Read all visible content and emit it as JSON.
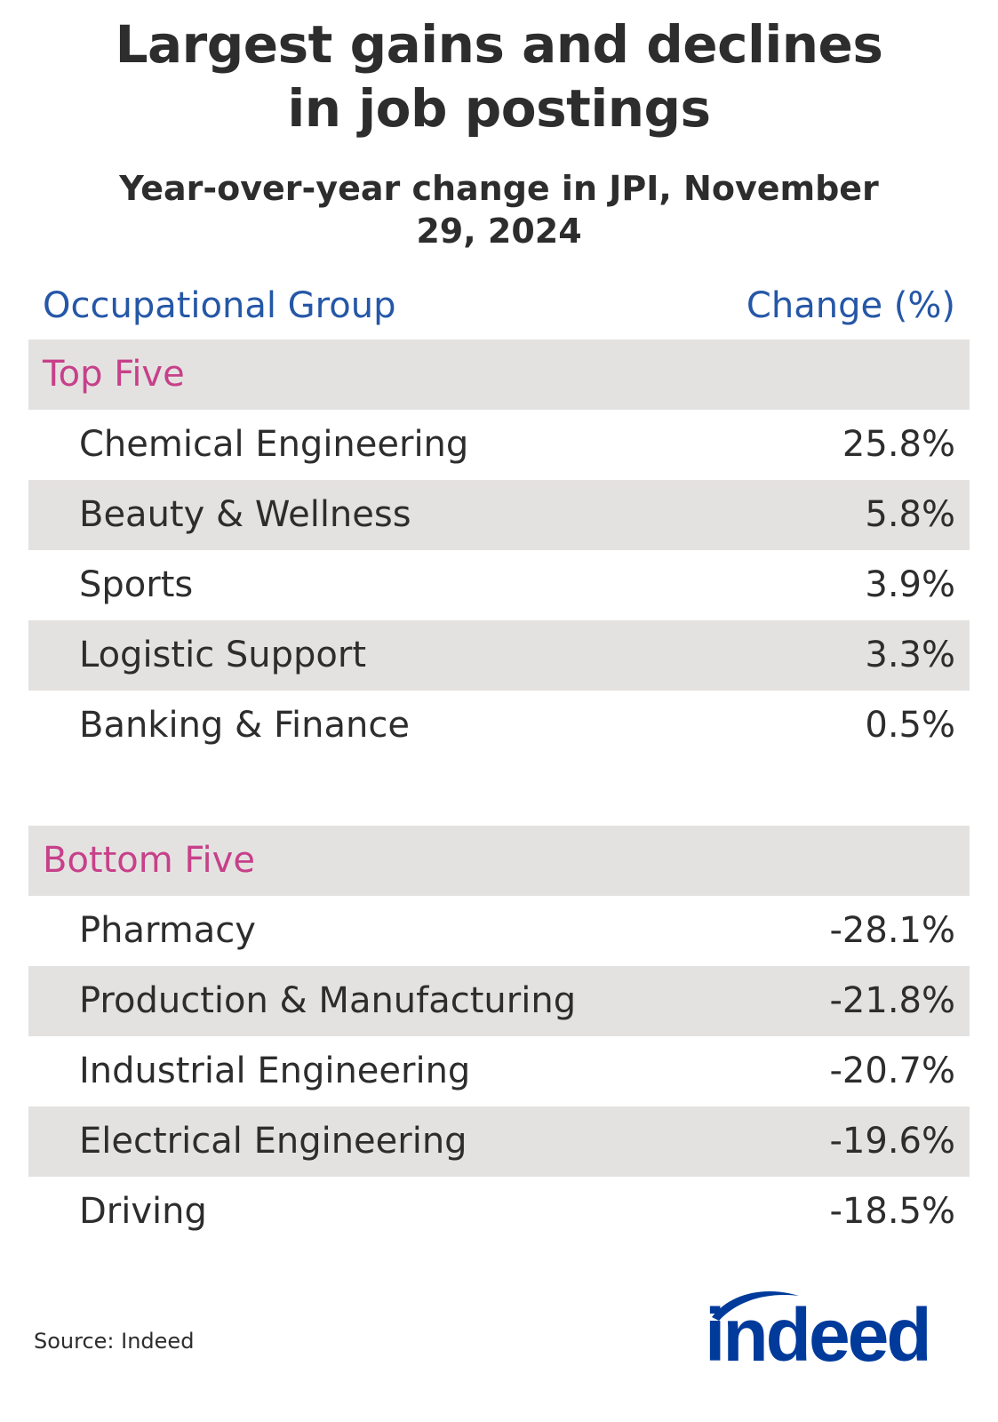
{
  "title_line1": "Largest gains and declines",
  "title_line2": "in job postings",
  "subtitle_line1": "Year-over-year change in JPI, November",
  "subtitle_line2": "29, 2024",
  "col_headers": {
    "group": "Occupational Group",
    "change": "Change (%)"
  },
  "source": "Source: Indeed",
  "logo": "indeed",
  "colors": {
    "header_blue": "#2557a7",
    "section_pink": "#c7408a",
    "row_shade": "#e4e2e0",
    "logo_blue": "#003a9b"
  },
  "chart_data": {
    "type": "table",
    "title": "Largest gains and declines in job postings",
    "subtitle": "Year-over-year change in JPI, November 29, 2024",
    "columns": [
      "Occupational Group",
      "Change (%)"
    ],
    "sections": [
      {
        "name": "Top Five",
        "rows": [
          {
            "label": "Chemical Engineering",
            "value": 25.8,
            "display": "25.8%"
          },
          {
            "label": "Beauty & Wellness",
            "value": 5.8,
            "display": "5.8%"
          },
          {
            "label": "Sports",
            "value": 3.9,
            "display": "3.9%"
          },
          {
            "label": "Logistic Support",
            "value": 3.3,
            "display": "3.3%"
          },
          {
            "label": "Banking & Finance",
            "value": 0.5,
            "display": "0.5%"
          }
        ]
      },
      {
        "name": "Bottom Five",
        "rows": [
          {
            "label": "Pharmacy",
            "value": -28.1,
            "display": "-28.1%"
          },
          {
            "label": "Production & Manufacturing",
            "value": -21.8,
            "display": "-21.8%"
          },
          {
            "label": "Industrial Engineering",
            "value": -20.7,
            "display": "-20.7%"
          },
          {
            "label": "Electrical Engineering",
            "value": -19.6,
            "display": "-19.6%"
          },
          {
            "label": "Driving",
            "value": -18.5,
            "display": "-18.5%"
          }
        ]
      }
    ]
  }
}
